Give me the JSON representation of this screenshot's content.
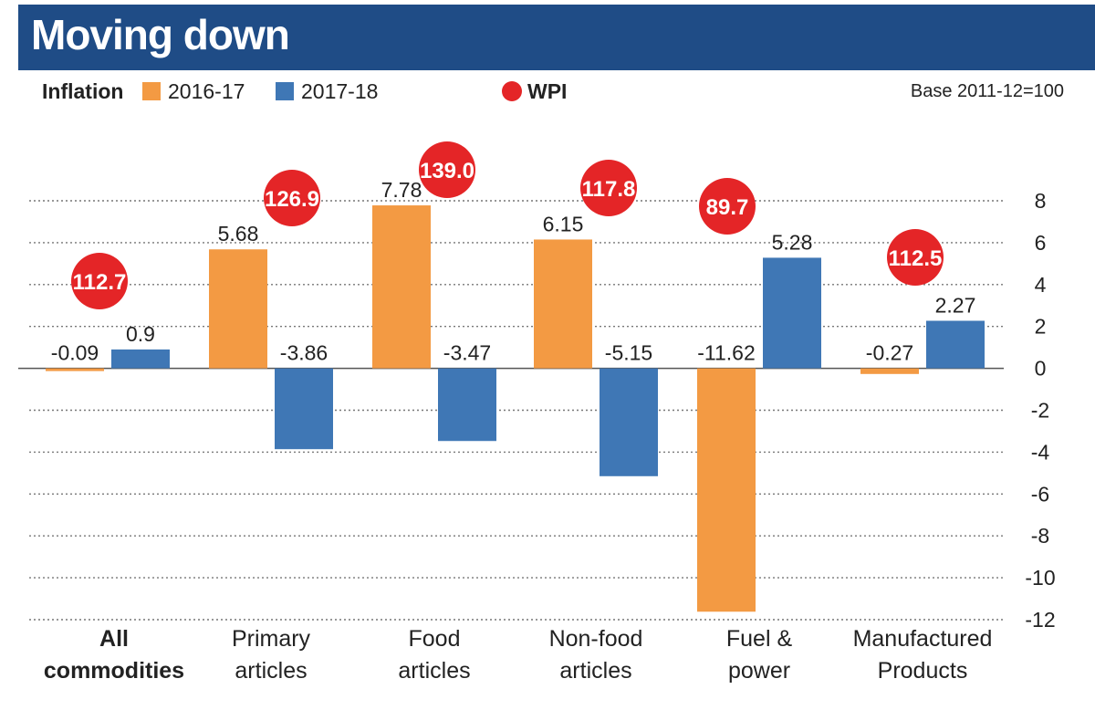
{
  "header": {
    "title": "Moving down"
  },
  "legend": {
    "label": "Inflation",
    "series_1": "2016-17",
    "series_2": "2017-18",
    "wpi": "WPI",
    "base_note": "Base 2011-12=100"
  },
  "colors": {
    "header_bg": "#1f4c86",
    "series_1": "#f39a43",
    "series_2": "#3f77b5",
    "wpi": "#e42527",
    "text": "#222222",
    "grid": "#777777"
  },
  "chart_data": {
    "type": "bar",
    "title": "Moving down",
    "categories": [
      [
        "All",
        "commodities"
      ],
      [
        "Primary",
        "articles"
      ],
      [
        "Food",
        "articles"
      ],
      [
        "Non-food",
        "articles"
      ],
      [
        "Fuel &",
        "power"
      ],
      [
        "Manufactured",
        "Products"
      ]
    ],
    "series": [
      {
        "name": "2016-17",
        "values": [
          -0.09,
          5.68,
          7.78,
          6.15,
          -11.62,
          -0.27
        ],
        "labels": [
          "-0.09",
          "5.68",
          "7.78",
          "6.15",
          "-11.62",
          "-0.27"
        ]
      },
      {
        "name": "2017-18",
        "values": [
          0.9,
          -3.86,
          -3.47,
          -5.15,
          5.28,
          2.27
        ],
        "labels": [
          "0.9",
          "-3.86",
          "-3.47",
          "-5.15",
          "5.28",
          "2.27"
        ]
      }
    ],
    "wpi": {
      "name": "WPI",
      "values": [
        "112.7",
        "126.9",
        "139.0",
        "117.8",
        "89.7",
        "112.5"
      ]
    },
    "ylim": [
      -12,
      8
    ],
    "yticks": [
      8,
      6,
      4,
      2,
      0,
      -2,
      -4,
      -6,
      -8,
      -10,
      -12
    ],
    "ytick_labels": [
      "8",
      "6",
      "4",
      "2",
      "0",
      "-2",
      "-4",
      "-6",
      "-8",
      "-10",
      "-12"
    ],
    "grid": true,
    "y_axis_side": "right",
    "legend_position": "top"
  }
}
